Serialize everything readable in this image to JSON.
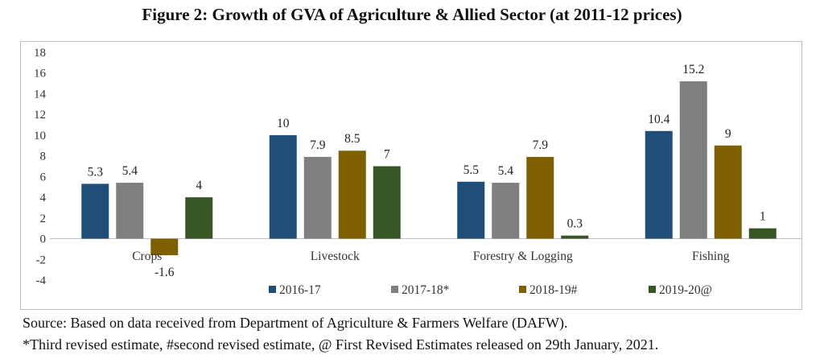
{
  "title": "Figure 2: Growth of GVA of Agriculture & Allied Sector (at 2011-12 prices)",
  "source_note": "Source: Based on data received from Department of Agriculture & Farmers Welfare (DAFW).",
  "footnote": "*Third revised estimate, #second revised estimate, @ First Revised Estimates released on 29th January, 2021.",
  "chart_data": {
    "type": "bar",
    "categories": [
      "Crops",
      "Livestock",
      "Forestry & Logging",
      "Fishing"
    ],
    "series": [
      {
        "name": "2016-17",
        "color": "#1f4e79",
        "values": [
          5.3,
          10,
          5.5,
          10.4
        ]
      },
      {
        "name": "2017-18*",
        "color": "#7f7f7f",
        "values": [
          5.4,
          7.9,
          5.4,
          15.2
        ]
      },
      {
        "name": "2018-19#",
        "color": "#7f6000",
        "values": [
          -1.6,
          8.5,
          7.9,
          9
        ]
      },
      {
        "name": "2019-20@",
        "color": "#375623",
        "values": [
          4,
          7,
          0.3,
          1
        ]
      }
    ],
    "ylim": [
      -4,
      18
    ],
    "yticks": [
      -4,
      -2,
      0,
      2,
      4,
      6,
      8,
      10,
      12,
      14,
      16,
      18
    ],
    "grid": false,
    "legend_position": "bottom",
    "data_labels": true
  }
}
